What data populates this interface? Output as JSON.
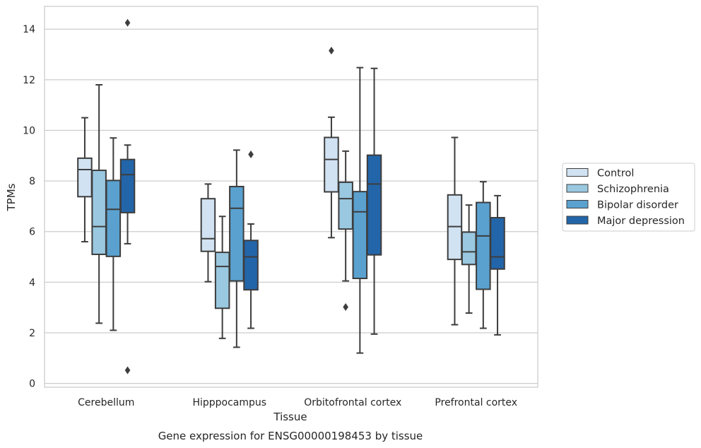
{
  "caption": "Gene expression for ENSG00000198453 by tissue",
  "chart_data": {
    "type": "boxplot",
    "xlabel": "Tissue",
    "ylabel": "TPMs",
    "ylim": [
      -0.15,
      14.9
    ],
    "yticks": [
      0,
      2,
      4,
      6,
      8,
      10,
      12,
      14
    ],
    "grid": "horizontal",
    "legend_position": "right",
    "categories": [
      "Cerebellum",
      "Hipppocampus",
      "Orbitofrontal cortex",
      "Prefrontal cortex"
    ],
    "series": [
      {
        "name": "Control",
        "color": "#d1e2f2",
        "boxes": [
          {
            "whisker_low": 5.6,
            "q1": 7.38,
            "median": 8.45,
            "q3": 8.9,
            "whisker_high": 10.5,
            "outliers": []
          },
          {
            "whisker_low": 4.02,
            "q1": 5.22,
            "median": 5.72,
            "q3": 7.3,
            "whisker_high": 7.88,
            "outliers": []
          },
          {
            "whisker_low": 5.76,
            "q1": 7.57,
            "median": 8.85,
            "q3": 9.72,
            "whisker_high": 10.52,
            "outliers": [
              13.15
            ]
          },
          {
            "whisker_low": 2.32,
            "q1": 4.9,
            "median": 6.2,
            "q3": 7.45,
            "whisker_high": 9.72,
            "outliers": []
          }
        ]
      },
      {
        "name": "Schizophrenia",
        "color": "#9ac8e0",
        "boxes": [
          {
            "whisker_low": 2.38,
            "q1": 5.1,
            "median": 6.2,
            "q3": 8.42,
            "whisker_high": 11.8,
            "outliers": []
          },
          {
            "whisker_low": 1.78,
            "q1": 2.97,
            "median": 4.62,
            "q3": 5.18,
            "whisker_high": 6.6,
            "outliers": []
          },
          {
            "whisker_low": 4.05,
            "q1": 6.1,
            "median": 7.3,
            "q3": 7.95,
            "whisker_high": 9.18,
            "outliers": [
              3.02
            ]
          },
          {
            "whisker_low": 2.78,
            "q1": 4.7,
            "median": 5.2,
            "q3": 5.98,
            "whisker_high": 7.05,
            "outliers": []
          }
        ]
      },
      {
        "name": "Bipolar disorder",
        "color": "#5aa1cf",
        "boxes": [
          {
            "whisker_low": 2.1,
            "q1": 5.02,
            "median": 6.88,
            "q3": 8.02,
            "whisker_high": 9.7,
            "outliers": []
          },
          {
            "whisker_low": 1.43,
            "q1": 4.05,
            "median": 6.92,
            "q3": 7.78,
            "whisker_high": 9.22,
            "outliers": []
          },
          {
            "whisker_low": 1.2,
            "q1": 4.15,
            "median": 6.78,
            "q3": 7.58,
            "whisker_high": 12.48,
            "outliers": []
          },
          {
            "whisker_low": 2.18,
            "q1": 3.72,
            "median": 5.83,
            "q3": 7.15,
            "whisker_high": 7.97,
            "outliers": []
          }
        ]
      },
      {
        "name": "Major depression",
        "color": "#2365a9",
        "boxes": [
          {
            "whisker_low": 5.52,
            "q1": 6.75,
            "median": 8.25,
            "q3": 8.85,
            "whisker_high": 9.42,
            "outliers": [
              0.52,
              14.25
            ]
          },
          {
            "whisker_low": 2.18,
            "q1": 3.7,
            "median": 5.0,
            "q3": 5.65,
            "whisker_high": 6.3,
            "outliers": [
              9.05
            ]
          },
          {
            "whisker_low": 1.95,
            "q1": 5.08,
            "median": 7.88,
            "q3": 9.02,
            "whisker_high": 12.45,
            "outliers": []
          },
          {
            "whisker_low": 1.92,
            "q1": 4.52,
            "median": 5.0,
            "q3": 6.55,
            "whisker_high": 7.42,
            "outliers": []
          }
        ]
      }
    ]
  }
}
